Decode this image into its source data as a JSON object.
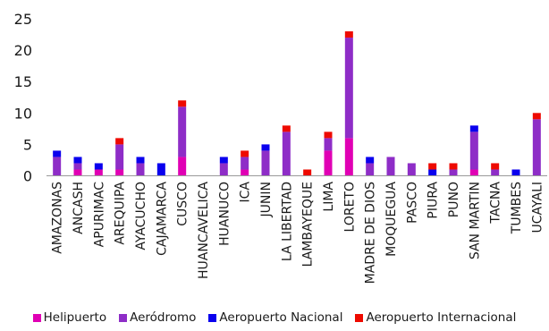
{
  "chart_data": {
    "type": "bar",
    "stacked": true,
    "categories": [
      "AMAZONAS",
      "ANCASH",
      "APURIMAC",
      "AREQUIPA",
      "AYACUCHO",
      "CAJAMARCA",
      "CUSCO",
      "HUANCAVELICA",
      "HUANUCO",
      "ICA",
      "JUNIN",
      "LA LIBERTAD",
      "LAMBAYEQUE",
      "LIMA",
      "LORETO",
      "MADRE DE DIOS",
      "MOQUEGUA",
      "PASCO",
      "PIURA",
      "PUNO",
      "SAN MARTIN",
      "TACNA",
      "TUMBES",
      "UCAYALI"
    ],
    "series": [
      {
        "name": "Helipuerto",
        "color": "#e000b4",
        "values": [
          0,
          1,
          1,
          1,
          0,
          0,
          3,
          0,
          0,
          1,
          0,
          0,
          0,
          4,
          6,
          0,
          0,
          0,
          0,
          0,
          1,
          0,
          0,
          0
        ]
      },
      {
        "name": "Aeródromo",
        "color": "#8e2dc7",
        "values": [
          3,
          1,
          0,
          4,
          2,
          0,
          8,
          0,
          2,
          2,
          4,
          7,
          0,
          2,
          16,
          2,
          3,
          2,
          0,
          1,
          6,
          1,
          0,
          9
        ]
      },
      {
        "name": "Aeropuerto Nacional",
        "color": "#0a00ee",
        "values": [
          1,
          1,
          1,
          0,
          1,
          2,
          0,
          0,
          1,
          0,
          1,
          0,
          0,
          0,
          0,
          1,
          0,
          0,
          1,
          0,
          1,
          0,
          1,
          0
        ]
      },
      {
        "name": "Aeropuerto Internacional",
        "color": "#ee0a00",
        "values": [
          0,
          0,
          0,
          1,
          0,
          0,
          1,
          0,
          0,
          1,
          0,
          1,
          1,
          1,
          1,
          0,
          0,
          0,
          1,
          1,
          0,
          1,
          0,
          1
        ]
      }
    ],
    "ylim": [
      0,
      25
    ],
    "yticks": [
      "0",
      "5",
      "10",
      "15",
      "20",
      "25"
    ],
    "grid": false,
    "legend": "bottom"
  }
}
